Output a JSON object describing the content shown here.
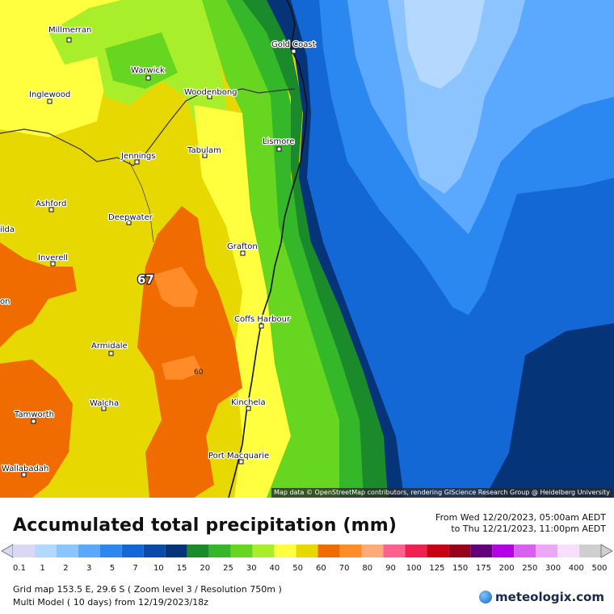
{
  "map": {
    "max_value": "67",
    "contour_value": "60",
    "attribution": "Map data © OpenStreetMap contributors, rendering GIScience Research Group @ Heidelberg University",
    "cities": [
      {
        "name": "Millmerran"
      },
      {
        "name": "Warwick"
      },
      {
        "name": "Inglewood"
      },
      {
        "name": "Woodenbong"
      },
      {
        "name": "Gold Coast"
      },
      {
        "name": "Lismore"
      },
      {
        "name": "Jennings"
      },
      {
        "name": "Tabulam"
      },
      {
        "name": "Ashford"
      },
      {
        "name": "Deepwater"
      },
      {
        "name": "Grafton"
      },
      {
        "name": "Inverell"
      },
      {
        "name": "Coffs Harbour"
      },
      {
        "name": "Armidale"
      },
      {
        "name": "Kinchela"
      },
      {
        "name": "Walcha"
      },
      {
        "name": "Tamworth"
      },
      {
        "name": "Port Macquarie"
      },
      {
        "name": "Wallabadah"
      },
      {
        "name": "ilda"
      },
      {
        "name": "on"
      }
    ]
  },
  "panel": {
    "title": "Accumulated total precipitation (mm)",
    "period_from": "From Wed 12/20/2023, 05:00am AEDT",
    "period_to": "to Thu 12/21/2023, 11:00pm AEDT",
    "grid_line": "Grid map 153.5 E, 29.6 S ( Zoom level 3 / Resolution 750m )",
    "model_line": "Multi Model ( 10 days)  from  12/19/2023/18z",
    "logo": "meteologix.com"
  },
  "legend": {
    "labels": [
      "0.1",
      "1",
      "2",
      "3",
      "5",
      "7",
      "10",
      "15",
      "20",
      "25",
      "30",
      "40",
      "50",
      "60",
      "70",
      "80",
      "90",
      "100",
      "125",
      "150",
      "175",
      "200",
      "250",
      "300",
      "400",
      "500"
    ],
    "colors": [
      "#d8d8f4",
      "#b4d8ff",
      "#8cc4ff",
      "#5aa8ff",
      "#2a88f0",
      "#1468d6",
      "#0a4aa8",
      "#063478",
      "#1a8a2a",
      "#34b82a",
      "#66d620",
      "#a8ee2a",
      "#ffff40",
      "#e6d800",
      "#f06c00",
      "#ff8c28",
      "#ffaa78",
      "#ff6090",
      "#f02050",
      "#c80014",
      "#960018",
      "#64007a",
      "#b400e6",
      "#d860f0",
      "#eca8f6",
      "#f6e0fa",
      "#cfcfcf"
    ]
  }
}
